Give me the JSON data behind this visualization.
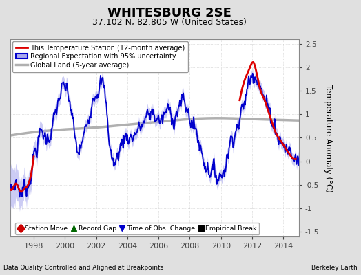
{
  "title": "WHITESBURG 2SE",
  "subtitle": "37.102 N, 82.805 W (United States)",
  "ylabel": "Temperature Anomaly (°C)",
  "xlabel_left": "Data Quality Controlled and Aligned at Breakpoints",
  "xlabel_right": "Berkeley Earth",
  "xlim": [
    1996.5,
    2015.0
  ],
  "ylim": [
    -1.6,
    2.6
  ],
  "yticks": [
    -1.5,
    -1.0,
    -0.5,
    0.0,
    0.5,
    1.0,
    1.5,
    2.0,
    2.5
  ],
  "xticks": [
    1998,
    2000,
    2002,
    2004,
    2006,
    2008,
    2010,
    2012,
    2014
  ],
  "bg_color": "#e0e0e0",
  "plot_bg_color": "#ffffff",
  "grid_color": "#c8c8c8",
  "title_fontsize": 13,
  "subtitle_fontsize": 9,
  "legend1_labels": [
    "This Temperature Station (12-month average)",
    "Regional Expectation with 95% uncertainty",
    "Global Land (5-year average)"
  ],
  "legend2_labels": [
    "Station Move",
    "Record Gap",
    "Time of Obs. Change",
    "Empirical Break"
  ],
  "legend2_colors": [
    "#cc0000",
    "#006600",
    "#0000cc",
    "#000000"
  ],
  "legend2_markers": [
    "D",
    "^",
    "v",
    "s"
  ],
  "station_color": "#dd0000",
  "regional_color": "#0000cc",
  "regional_fill_color": "#aaaaee",
  "global_color": "#b0b0b0",
  "station_lw": 2.0,
  "regional_lw": 1.3,
  "global_lw": 2.5,
  "regional_t": [
    1996.5,
    1996.7,
    1996.9,
    1997.0,
    1997.2,
    1997.4,
    1997.6,
    1997.8,
    1998.0,
    1998.2,
    1998.4,
    1998.6,
    1998.8,
    1999.0,
    1999.2,
    1999.4,
    1999.6,
    1999.8,
    2000.0,
    2000.2,
    2000.4,
    2000.6,
    2000.8,
    2001.0,
    2001.2,
    2001.4,
    2001.6,
    2001.8,
    2002.0,
    2002.2,
    2002.4,
    2002.6,
    2002.8,
    2003.0,
    2003.2,
    2003.4,
    2003.6,
    2003.8,
    2004.0,
    2004.2,
    2004.4,
    2004.6,
    2004.8,
    2005.0,
    2005.2,
    2005.4,
    2005.6,
    2005.8,
    2006.0,
    2006.2,
    2006.4,
    2006.6,
    2006.8,
    2007.0,
    2007.2,
    2007.4,
    2007.6,
    2007.8,
    2008.0,
    2008.2,
    2008.4,
    2008.6,
    2008.8,
    2009.0,
    2009.2,
    2009.4,
    2009.6,
    2009.8,
    2010.0,
    2010.2,
    2010.4,
    2010.6,
    2010.8,
    2011.0,
    2011.2,
    2011.4,
    2011.6,
    2011.8,
    2012.0,
    2012.2,
    2012.4,
    2012.6,
    2012.8,
    2013.0,
    2013.2,
    2013.4,
    2013.6,
    2013.8,
    2014.0,
    2014.2,
    2014.4,
    2014.6,
    2014.8,
    2015.0
  ],
  "regional_v": [
    -0.6,
    -0.55,
    -0.45,
    -0.55,
    -0.65,
    -0.55,
    -0.5,
    -0.3,
    0.1,
    0.3,
    0.55,
    0.6,
    0.5,
    0.55,
    0.75,
    1.0,
    1.3,
    1.5,
    1.55,
    1.4,
    1.1,
    0.6,
    0.2,
    0.3,
    0.5,
    0.8,
    1.1,
    1.4,
    1.5,
    1.6,
    1.65,
    1.3,
    0.6,
    0.1,
    -0.05,
    0.15,
    0.35,
    0.5,
    0.55,
    0.5,
    0.55,
    0.65,
    0.7,
    0.8,
    0.9,
    1.0,
    1.05,
    0.95,
    0.9,
    0.85,
    1.0,
    1.1,
    1.0,
    0.95,
    1.1,
    1.2,
    1.25,
    1.1,
    0.95,
    0.8,
    0.65,
    0.4,
    0.15,
    -0.05,
    -0.15,
    -0.2,
    -0.25,
    -0.3,
    -0.3,
    -0.15,
    0.1,
    0.4,
    0.6,
    0.7,
    0.9,
    1.1,
    1.4,
    1.7,
    1.85,
    1.9,
    1.75,
    1.5,
    1.3,
    1.15,
    0.95,
    0.8,
    0.6,
    0.45,
    0.35,
    0.25,
    0.2,
    0.1,
    0.05,
    0.0
  ],
  "uncertainty_v": [
    0.45,
    0.4,
    0.35,
    0.32,
    0.3,
    0.27,
    0.25,
    0.22,
    0.2,
    0.18,
    0.16,
    0.15,
    0.14,
    0.14,
    0.13,
    0.13,
    0.13,
    0.13,
    0.13,
    0.13,
    0.12,
    0.12,
    0.12,
    0.12,
    0.12,
    0.12,
    0.12,
    0.12,
    0.12,
    0.12,
    0.12,
    0.12,
    0.12,
    0.12,
    0.12,
    0.12,
    0.12,
    0.12,
    0.12,
    0.12,
    0.12,
    0.12,
    0.12,
    0.12,
    0.12,
    0.12,
    0.12,
    0.12,
    0.12,
    0.12,
    0.12,
    0.12,
    0.12,
    0.12,
    0.12,
    0.12,
    0.12,
    0.12,
    0.12,
    0.12,
    0.12,
    0.12,
    0.12,
    0.12,
    0.12,
    0.12,
    0.12,
    0.12,
    0.12,
    0.12,
    0.12,
    0.12,
    0.12,
    0.12,
    0.12,
    0.12,
    0.12,
    0.12,
    0.12,
    0.12,
    0.12,
    0.12,
    0.12,
    0.12,
    0.12,
    0.12,
    0.12,
    0.12,
    0.12,
    0.12,
    0.12,
    0.12,
    0.12,
    0.12
  ],
  "global_t": [
    1996.5,
    1998.0,
    2000.0,
    2002.0,
    2004.0,
    2006.0,
    2008.0,
    2010.0,
    2012.0,
    2014.0,
    2015.0
  ],
  "global_v": [
    0.55,
    0.62,
    0.68,
    0.72,
    0.78,
    0.84,
    0.9,
    0.92,
    0.9,
    0.88,
    0.87
  ],
  "station_t": [
    2011.2,
    2011.4,
    2011.6,
    2011.8,
    2012.0,
    2012.1,
    2012.2,
    2012.4,
    2012.5,
    2012.6,
    2012.8,
    2013.0,
    2013.2,
    2013.4,
    2013.6,
    2013.8,
    2014.0,
    2014.2,
    2014.5,
    2014.8
  ],
  "station_v": [
    1.3,
    1.6,
    1.8,
    1.95,
    2.1,
    2.1,
    2.0,
    1.7,
    1.55,
    1.45,
    1.3,
    1.1,
    0.9,
    0.7,
    0.55,
    0.45,
    0.35,
    0.25,
    0.1,
    0.05
  ],
  "station_early_t": [
    1996.5,
    1996.7,
    1996.9,
    1997.0,
    1997.2,
    1997.4,
    1997.6,
    1997.8,
    1998.0
  ],
  "station_early_v": [
    -0.6,
    -0.55,
    -0.48,
    -0.55,
    -0.65,
    -0.58,
    -0.52,
    -0.32,
    0.1
  ]
}
